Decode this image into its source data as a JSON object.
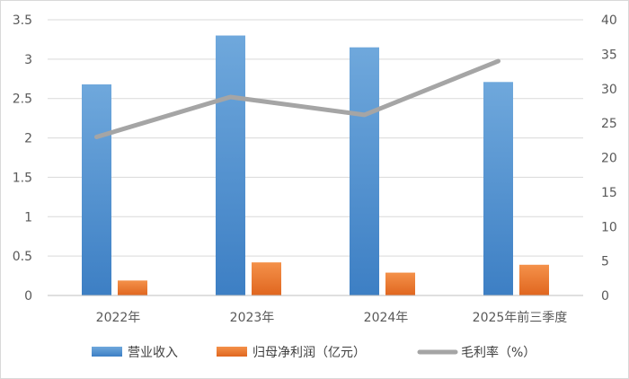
{
  "chart_data": {
    "type": "bar",
    "categories": [
      "2022年",
      "2023年",
      "2024年",
      "2025年前三季度"
    ],
    "series": [
      {
        "name": "营业收入",
        "type": "bar",
        "axis": "left",
        "values": [
          2.68,
          3.3,
          3.15,
          2.71
        ],
        "color": "#5b9bd5"
      },
      {
        "name": "归母净利润（亿元）",
        "type": "bar",
        "axis": "left",
        "values": [
          0.19,
          0.42,
          0.29,
          0.39
        ],
        "color": "#ed7d31"
      },
      {
        "name": "毛利率（%）",
        "type": "line",
        "axis": "right",
        "values": [
          23.0,
          28.8,
          26.2,
          34.0
        ],
        "color": "#a5a5a5"
      }
    ],
    "y_left": {
      "ylim": [
        0,
        3.5
      ],
      "ticks": [
        "0",
        "0.5",
        "1",
        "1.5",
        "2",
        "2.5",
        "3",
        "3.5"
      ]
    },
    "y_right": {
      "ylim": [
        0,
        40
      ],
      "ticks": [
        "0",
        "5",
        "10",
        "15",
        "20",
        "25",
        "30",
        "35",
        "40"
      ]
    },
    "grid": true,
    "legend_position": "bottom"
  }
}
